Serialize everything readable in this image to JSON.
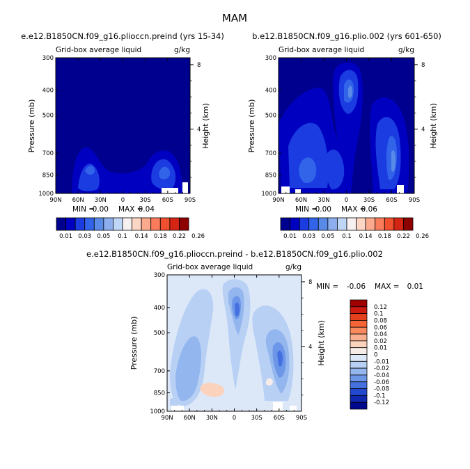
{
  "figure": {
    "title": "MAM"
  },
  "colors": {
    "background": "#ffffff",
    "panel_base": "#00008f"
  },
  "chart_data": [
    {
      "type": "heatmap",
      "title": "e.e12.B1850CN.f09_g16.plioccn.preind (yrs 15-34)",
      "left_subtitle": "Grid-box average liquid",
      "right_subtitle": "g/kg",
      "ylabel": "Pressure (mb)",
      "y2label": "Height (km)",
      "xticks": [
        "90N",
        "60N",
        "30N",
        "0",
        "30S",
        "60S",
        "90S"
      ],
      "yticks": [
        "300",
        "400",
        "500",
        "700",
        "850",
        "1000"
      ],
      "y2ticks": [
        "8",
        "4"
      ],
      "xlim": [
        90,
        -90
      ],
      "ylim": [
        1000,
        300
      ],
      "stats": {
        "min_label": "MIN =",
        "min": "0.00",
        "max_label": "MAX =",
        "max": "0.04"
      },
      "colorbar": {
        "orientation": "horizontal",
        "labels": [
          "0.01",
          "0.03",
          "0.05",
          "0.1",
          "0.14",
          "0.18",
          "0.22",
          "0.26"
        ],
        "colors": [
          "#00008f",
          "#0000c0",
          "#1a3ce0",
          "#3264ea",
          "#5a8ae8",
          "#8caeee",
          "#c0d6f6",
          "#f6f0f0",
          "#fcd6c4",
          "#fcaa8e",
          "#fa7c5a",
          "#f0502e",
          "#d42414",
          "#8e0000"
        ]
      }
    },
    {
      "type": "heatmap",
      "title": "b.e12.B1850CN.f09_g16.plio.002 (yrs 601-650)",
      "left_subtitle": "Grid-box average liquid",
      "right_subtitle": "g/kg",
      "ylabel": "Pressure (mb)",
      "y2label": "Height (km)",
      "xticks": [
        "90N",
        "60N",
        "30N",
        "0",
        "30S",
        "60S",
        "90S"
      ],
      "yticks": [
        "300",
        "400",
        "500",
        "700",
        "850",
        "1000"
      ],
      "y2ticks": [
        "8",
        "4"
      ],
      "xlim": [
        90,
        -90
      ],
      "ylim": [
        1000,
        300
      ],
      "stats": {
        "min_label": "MIN =",
        "min": "0.00",
        "max_label": "MAX =",
        "max": "0.06"
      },
      "colorbar": {
        "orientation": "horizontal",
        "labels": [
          "0.01",
          "0.03",
          "0.05",
          "0.1",
          "0.14",
          "0.18",
          "0.22",
          "0.26"
        ],
        "colors": [
          "#00008f",
          "#0000c0",
          "#1a3ce0",
          "#3264ea",
          "#5a8ae8",
          "#8caeee",
          "#c0d6f6",
          "#f6f0f0",
          "#fcd6c4",
          "#fcaa8e",
          "#fa7c5a",
          "#f0502e",
          "#d42414",
          "#8e0000"
        ]
      }
    },
    {
      "type": "heatmap",
      "title": "e.e12.B1850CN.f09_g16.plioccn.preind - b.e12.B1850CN.f09_g16.plio.002",
      "left_subtitle": "Grid-box average liquid",
      "right_subtitle": "g/kg",
      "ylabel": "Pressure (mb)",
      "y2label": "Height (km)",
      "xticks": [
        "90N",
        "60N",
        "30N",
        "0",
        "30S",
        "60S",
        "90S"
      ],
      "yticks": [
        "300",
        "400",
        "500",
        "700",
        "850",
        "1000"
      ],
      "y2ticks": [
        "8",
        "4"
      ],
      "xlim": [
        90,
        -90
      ],
      "ylim": [
        1000,
        300
      ],
      "stats": {
        "min_label": "MIN =",
        "min": "-0.06",
        "max_label": "MAX =",
        "max": "0.01"
      },
      "colorbar": {
        "orientation": "vertical",
        "labels": [
          "0.12",
          "0.1",
          "0.08",
          "0.06",
          "0.04",
          "0.02",
          "0.01",
          "0",
          "-0.01",
          "-0.02",
          "-0.04",
          "-0.06",
          "-0.08",
          "-0.1",
          "-0.12"
        ],
        "colors": [
          "#a00000",
          "#cc1a10",
          "#e4401e",
          "#f46436",
          "#f98a5e",
          "#fab090",
          "#fbd2bc",
          "#f6ece8",
          "#dce8f8",
          "#b8d0f4",
          "#94b6ee",
          "#6c96e8",
          "#4470e0",
          "#2248d0",
          "#1028b0",
          "#00088e"
        ]
      }
    }
  ]
}
